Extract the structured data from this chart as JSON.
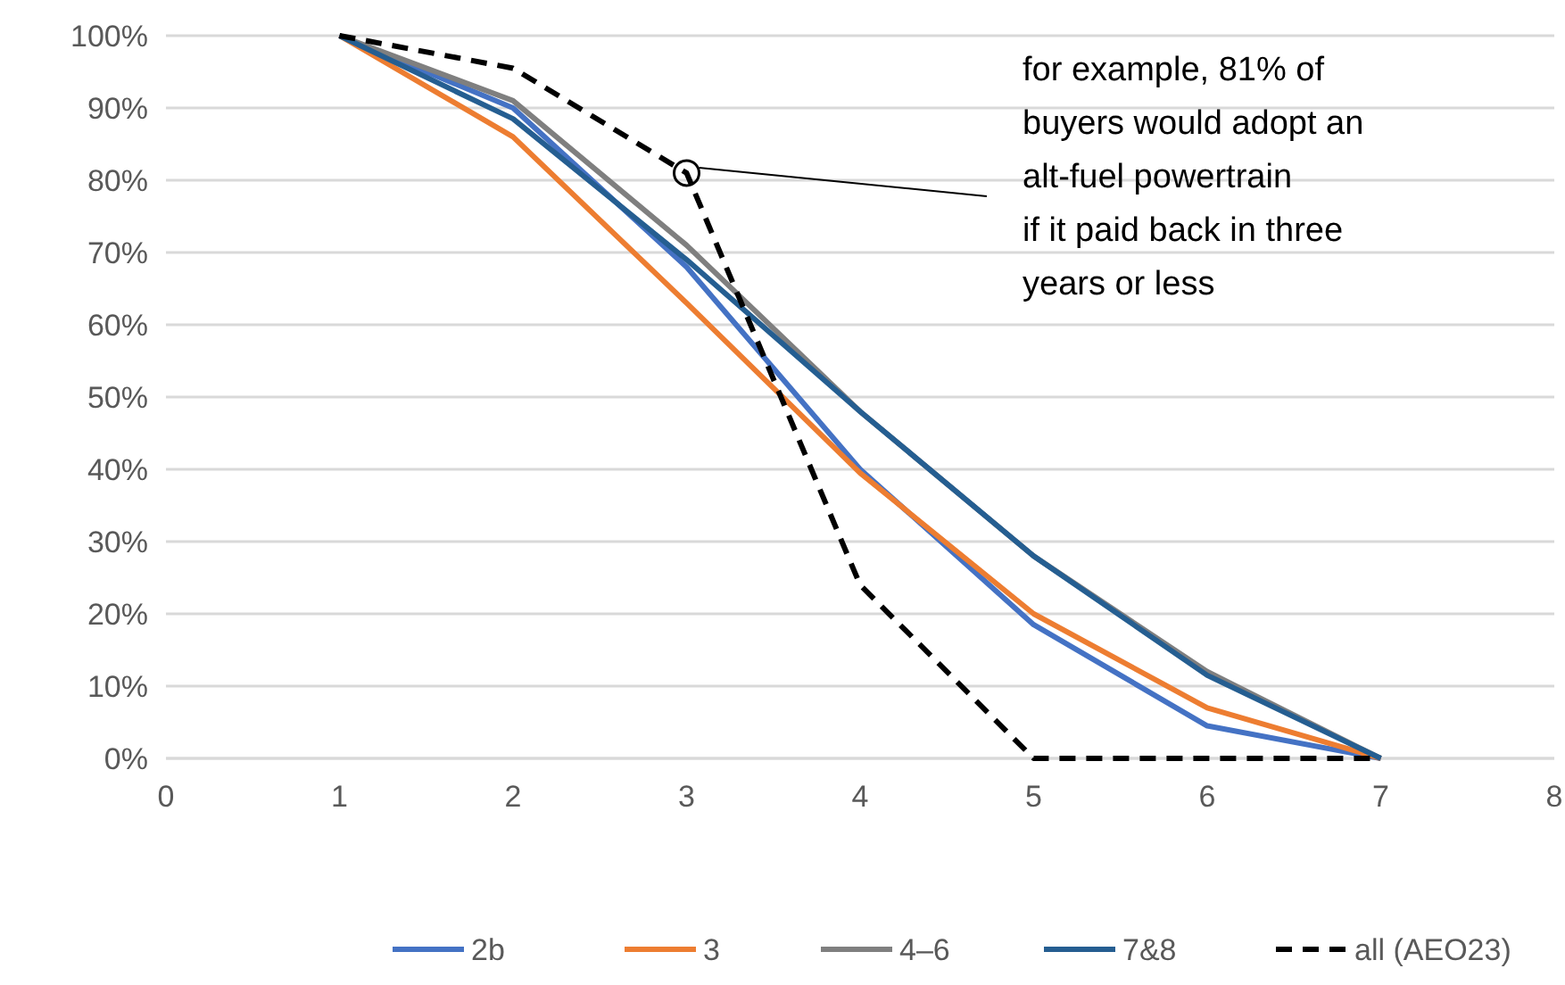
{
  "chart_data": {
    "type": "line",
    "x": [
      1,
      2,
      3,
      4,
      5,
      6,
      7
    ],
    "xlim": [
      0,
      8
    ],
    "xticks": [
      0,
      1,
      2,
      3,
      4,
      5,
      6,
      7,
      8
    ],
    "ylim": [
      0,
      100
    ],
    "yticks": [
      {
        "value": 0,
        "label": "0%"
      },
      {
        "value": 10,
        "label": "10%"
      },
      {
        "value": 20,
        "label": "20%"
      },
      {
        "value": 30,
        "label": "30%"
      },
      {
        "value": 40,
        "label": "40%"
      },
      {
        "value": 50,
        "label": "50%"
      },
      {
        "value": 60,
        "label": "60%"
      },
      {
        "value": 70,
        "label": "70%"
      },
      {
        "value": 80,
        "label": "80%"
      },
      {
        "value": 90,
        "label": "90%"
      },
      {
        "value": 100,
        "label": "100%"
      }
    ],
    "grid": "y",
    "legend": "bottom",
    "marker": "none",
    "series": [
      {
        "name": "2b",
        "color": "#4472c4",
        "values": [
          100,
          90,
          68,
          40,
          18.5,
          4.5,
          0
        ]
      },
      {
        "name": "3",
        "color": "#ed7d31",
        "values": [
          100,
          86,
          63,
          39.5,
          20,
          7,
          0
        ]
      },
      {
        "name": "4–6",
        "color": "#7f7f7f",
        "values": [
          100,
          91,
          71,
          48,
          28,
          12,
          0
        ]
      },
      {
        "name": "7&8",
        "color": "#255e91",
        "values": [
          100,
          88.5,
          69,
          48,
          28,
          11.5,
          0
        ]
      },
      {
        "name": "all (AEO23)",
        "color": "#000000",
        "line_style": "dashed",
        "values": [
          100,
          95.5,
          81,
          24,
          0,
          0,
          0
        ]
      }
    ],
    "annotations": [
      {
        "text": "for example, 81% of\nbuyers would adopt an\nalt-fuel powertrain\nif it paid back in three\nyears or less",
        "x": 3,
        "y": 81
      }
    ]
  }
}
